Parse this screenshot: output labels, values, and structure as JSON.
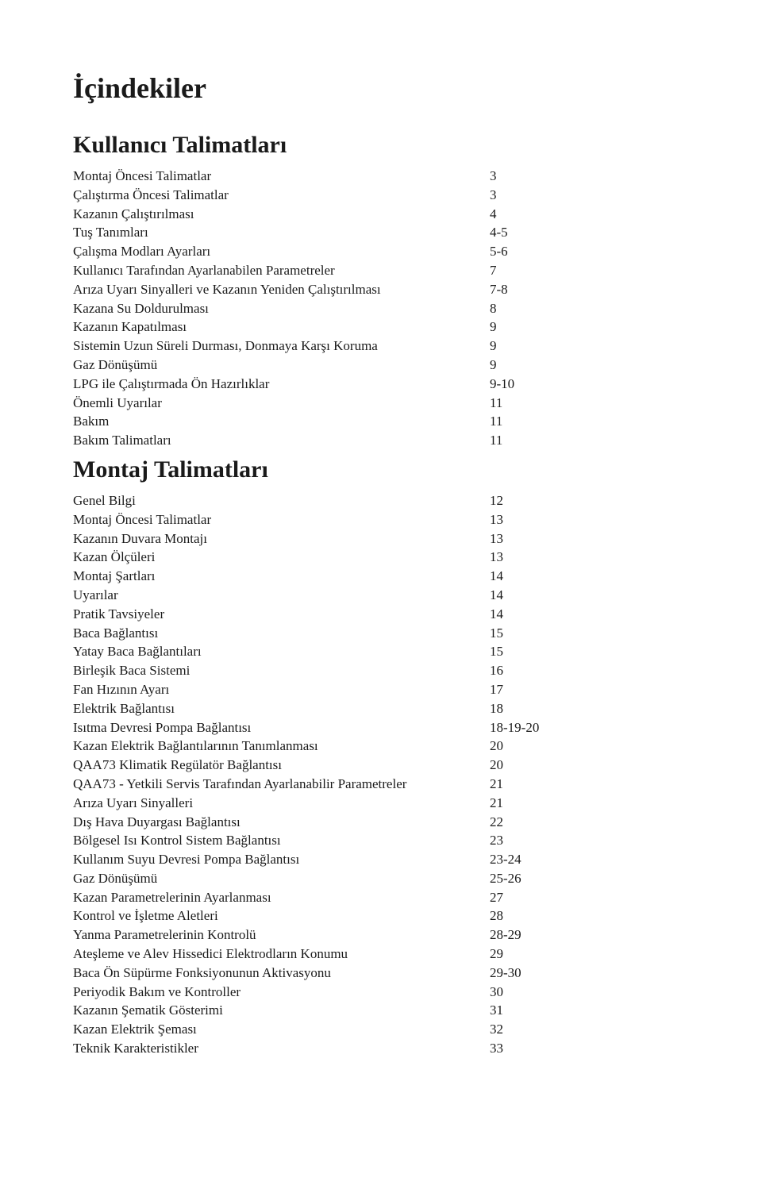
{
  "mainTitle": "İçindekiler",
  "sections": [
    {
      "heading": "Kullanıcı Talimatları",
      "entries": [
        {
          "label": "Montaj Öncesi Talimatlar",
          "page": "3"
        },
        {
          "label": "Çalıştırma Öncesi Talimatlar",
          "page": "3"
        },
        {
          "label": "Kazanın Çalıştırılması",
          "page": "4"
        },
        {
          "label": "Tuş Tanımları",
          "page": "4-5"
        },
        {
          "label": "Çalışma Modları Ayarları",
          "page": "5-6"
        },
        {
          "label": "Kullanıcı Tarafından Ayarlanabilen Parametreler",
          "page": "7"
        },
        {
          "label": "Arıza Uyarı Sinyalleri ve Kazanın Yeniden Çalıştırılması",
          "page": "7-8"
        },
        {
          "label": "Kazana Su Doldurulması",
          "page": "8"
        },
        {
          "label": "Kazanın Kapatılması",
          "page": "9"
        },
        {
          "label": "Sistemin Uzun Süreli Durması, Donmaya Karşı Koruma",
          "page": "9"
        },
        {
          "label": "Gaz Dönüşümü",
          "page": "9"
        },
        {
          "label": "LPG ile Çalıştırmada Ön Hazırlıklar",
          "page": "9-10"
        },
        {
          "label": "Önemli Uyarılar",
          "page": "11"
        },
        {
          "label": "Bakım",
          "page": "11"
        },
        {
          "label": "Bakım Talimatları",
          "page": "11"
        }
      ]
    },
    {
      "heading": "Montaj Talimatları",
      "entries": [
        {
          "label": "Genel Bilgi",
          "page": "12"
        },
        {
          "label": "Montaj Öncesi Talimatlar",
          "page": "13"
        },
        {
          "label": "Kazanın Duvara Montajı",
          "page": "13"
        },
        {
          "label": "Kazan Ölçüleri",
          "page": "13"
        },
        {
          "label": "Montaj Şartları",
          "page": "14"
        },
        {
          "label": "Uyarılar",
          "page": "14"
        },
        {
          "label": "Pratik Tavsiyeler",
          "page": "14"
        },
        {
          "label": "Baca Bağlantısı",
          "page": "15"
        },
        {
          "label": "Yatay Baca Bağlantıları",
          "page": "15"
        },
        {
          "label": "Birleşik Baca Sistemi",
          "page": "16"
        },
        {
          "label": "Fan Hızının Ayarı",
          "page": "17"
        },
        {
          "label": "Elektrik Bağlantısı",
          "page": "18"
        },
        {
          "label": "Isıtma Devresi Pompa Bağlantısı",
          "page": "18-19-20"
        },
        {
          "label": "Kazan Elektrik Bağlantılarının Tanımlanması",
          "page": "20"
        },
        {
          "label": "QAA73 Klimatik Regülatör Bağlantısı",
          "page": "20"
        },
        {
          "label": "QAA73 - Yetkili Servis Tarafından Ayarlanabilir Parametreler",
          "page": "21"
        },
        {
          "label": "Arıza Uyarı Sinyalleri",
          "page": "21"
        },
        {
          "label": "Dış Hava Duyargası Bağlantısı",
          "page": "22"
        },
        {
          "label": "Bölgesel Isı Kontrol Sistem Bağlantısı",
          "page": "23"
        },
        {
          "label": "Kullanım Suyu Devresi Pompa Bağlantısı",
          "page": "23-24"
        },
        {
          "label": "Gaz Dönüşümü",
          "page": "25-26"
        },
        {
          "label": "Kazan Parametrelerinin Ayarlanması",
          "page": "27"
        },
        {
          "label": "Kontrol ve İşletme Aletleri",
          "page": "28"
        },
        {
          "label": "Yanma Parametrelerinin Kontrolü",
          "page": "28-29"
        },
        {
          "label": "Ateşleme ve Alev Hissedici Elektrodların Konumu",
          "page": "29"
        },
        {
          "label": "Baca Ön Süpürme Fonksiyonunun Aktivasyonu",
          "page": "29-30"
        },
        {
          "label": "Periyodik Bakım ve Kontroller",
          "page": "30"
        },
        {
          "label": "Kazanın Şematik Gösterimi",
          "page": "31"
        },
        {
          "label": "Kazan Elektrik Şeması",
          "page": "32"
        },
        {
          "label": "Teknik Karakteristikler",
          "page": "33"
        }
      ]
    }
  ]
}
